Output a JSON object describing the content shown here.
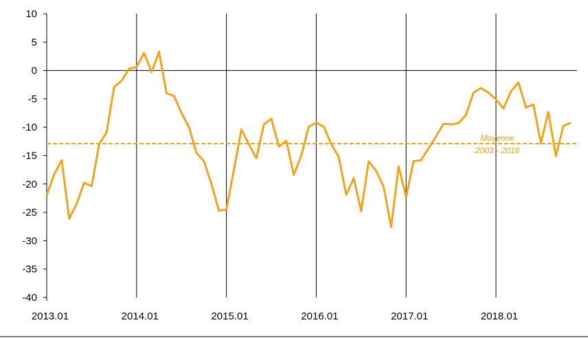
{
  "chart_data": {
    "type": "line",
    "title": "",
    "xlabel": "",
    "ylabel": "",
    "ylim": [
      -40,
      10
    ],
    "yticks": [
      10,
      5,
      0,
      -5,
      -10,
      -15,
      -20,
      -25,
      -30,
      -35,
      -40
    ],
    "xtick_labels": [
      "2013.01",
      "2014.01",
      "2015.01",
      "2016.01",
      "2017.01",
      "2018.01"
    ],
    "grid": "vertical lines at year starts",
    "series": [
      {
        "color": "#f0a31b",
        "start": "2013.01",
        "values": [
          -22,
          -18.3,
          -15.8,
          -26.1,
          -23.5,
          -19.8,
          -20.4,
          -13,
          -10.9,
          -2.9,
          -1.8,
          0.3,
          0.6,
          3.1,
          -0.3,
          3.3,
          -4,
          -4.5,
          -7.5,
          -10,
          -14.5,
          -16,
          -20,
          -24.7,
          -24.5,
          -17.5,
          -10.4,
          -13,
          -15.5,
          -9.5,
          -8.5,
          -13.4,
          -12.4,
          -18.4,
          -15,
          -9.9,
          -9.2,
          -9.9,
          -13,
          -15.2,
          -21.9,
          -19,
          -24.8,
          -16,
          -17.7,
          -20.5,
          -27.6,
          -16.9,
          -22.3,
          -16,
          -15.8,
          -13.7,
          -11.6,
          -9.4,
          -9.5,
          -9.3,
          -7.8,
          -3.9,
          -3.1,
          -3.9,
          -5.1,
          -6.7,
          -3.7,
          -2.1,
          -6.5,
          -6,
          -12.8,
          -7.3,
          -15.1,
          -9.8,
          -9.2
        ]
      }
    ],
    "reference_line": {
      "value": -12.9,
      "label_line1": "Moyenne",
      "label_line2": "2003 - 2018",
      "color": "#e3a21a"
    }
  }
}
